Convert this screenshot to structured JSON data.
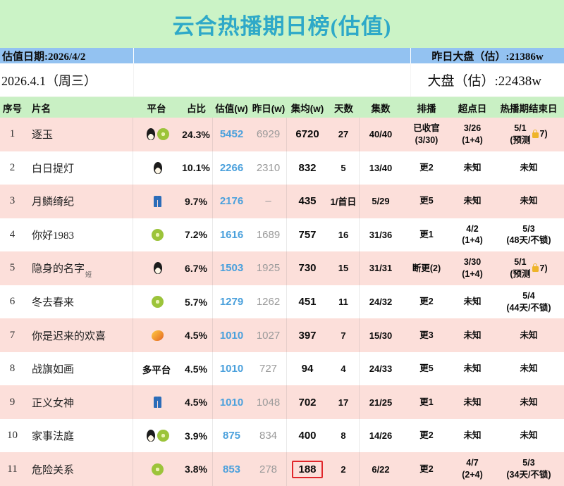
{
  "colors": {
    "band_green": "#cbf3c6",
    "title_teal": "#2ea9c8",
    "info_blue": "#93c2f1",
    "header_green": "#c9f0c4",
    "row_pink": "#fcdfda",
    "estimate_blue": "#4aa0dc",
    "yesterday_gray": "#9a9a9a",
    "highlight_red": "#e0262b",
    "lock_gold": "#eeb42a"
  },
  "title": "云合热播期日榜(估值)",
  "info_bar": {
    "left": "估值日期:2026/4/2",
    "right": "昨日大盘（估）:21386w"
  },
  "date_row": {
    "left": "2026.4.1（周三）",
    "right": "大盘（估）:22438w"
  },
  "chart_data": {
    "type": "table",
    "title": "云合热播期日榜(估值)",
    "columns": [
      "序号",
      "片名",
      "平台",
      "占比",
      "估值(w)",
      "昨日(w)",
      "集均(w)",
      "天数",
      "集数",
      "排播",
      "超点日",
      "热播期结束日"
    ],
    "rows": [
      {
        "num": "1",
        "title": "逐玉",
        "title_suffix": "",
        "platforms": [
          "penguin",
          "kiwi"
        ],
        "platform_text": "",
        "share": "24.3%",
        "est": "5452",
        "yest": "6929",
        "avg": "6720",
        "days": "27",
        "eps": "40/40",
        "sched": "已收官\n(3/30)",
        "point": "3/26\n(1+4)",
        "end": "5/1\n(预测🔒7)"
      },
      {
        "num": "2",
        "title": "白日提灯",
        "title_suffix": "",
        "platforms": [
          "penguin"
        ],
        "platform_text": "",
        "share": "10.1%",
        "est": "2266",
        "yest": "2310",
        "avg": "832",
        "days": "5",
        "eps": "13/40",
        "sched": "更2",
        "point": "未知",
        "end": "未知"
      },
      {
        "num": "3",
        "title": "月鳞绮纪",
        "title_suffix": "",
        "platforms": [
          "jeans"
        ],
        "platform_text": "",
        "share": "9.7%",
        "est": "2176",
        "yest": "–",
        "avg": "435",
        "days": "1/首日",
        "eps": "5/29",
        "sched": "更5",
        "point": "未知",
        "end": "未知"
      },
      {
        "num": "4",
        "title": "你好1983",
        "title_suffix": "",
        "platforms": [
          "kiwi"
        ],
        "platform_text": "",
        "share": "7.2%",
        "est": "1616",
        "yest": "1689",
        "avg": "757",
        "days": "16",
        "eps": "31/36",
        "sched": "更1",
        "point": "4/2\n(1+4)",
        "end": "5/3\n(48天/不锁)"
      },
      {
        "num": "5",
        "title": "隐身的名字",
        "title_suffix": "短",
        "platforms": [
          "penguin"
        ],
        "platform_text": "",
        "share": "6.7%",
        "est": "1503",
        "yest": "1925",
        "avg": "730",
        "days": "15",
        "eps": "31/31",
        "sched": "断更(2)",
        "point": "3/30\n(1+4)",
        "end": "5/1\n(预测🔒7)"
      },
      {
        "num": "6",
        "title": "冬去春来",
        "title_suffix": "",
        "platforms": [
          "kiwi"
        ],
        "platform_text": "",
        "share": "5.7%",
        "est": "1279",
        "yest": "1262",
        "avg": "451",
        "days": "11",
        "eps": "24/32",
        "sched": "更2",
        "point": "未知",
        "end": "5/4\n(44天/不锁)"
      },
      {
        "num": "7",
        "title": "你是迟来的欢喜",
        "title_suffix": "",
        "platforms": [
          "mango"
        ],
        "platform_text": "",
        "share": "4.5%",
        "est": "1010",
        "yest": "1027",
        "avg": "397",
        "days": "7",
        "eps": "15/30",
        "sched": "更3",
        "point": "未知",
        "end": "未知"
      },
      {
        "num": "8",
        "title": "战旗如画",
        "title_suffix": "",
        "platforms": [],
        "platform_text": "多平台",
        "share": "4.5%",
        "est": "1010",
        "yest": "727",
        "avg": "94",
        "days": "4",
        "eps": "24/33",
        "sched": "更5",
        "point": "未知",
        "end": "未知"
      },
      {
        "num": "9",
        "title": "正义女神",
        "title_suffix": "",
        "platforms": [
          "jeans"
        ],
        "platform_text": "",
        "share": "4.5%",
        "est": "1010",
        "yest": "1048",
        "avg": "702",
        "days": "17",
        "eps": "21/25",
        "sched": "更1",
        "point": "未知",
        "end": "未知"
      },
      {
        "num": "10",
        "title": "家事法庭",
        "title_suffix": "",
        "platforms": [
          "penguin",
          "kiwi"
        ],
        "platform_text": "",
        "share": "3.9%",
        "est": "875",
        "yest": "834",
        "avg": "400",
        "days": "8",
        "eps": "14/26",
        "sched": "更2",
        "point": "未知",
        "end": "未知"
      },
      {
        "num": "11",
        "title": "危险关系",
        "title_suffix": "",
        "platforms": [
          "kiwi"
        ],
        "platform_text": "",
        "share": "3.8%",
        "est": "853",
        "yest": "278",
        "avg": "188",
        "days": "2",
        "eps": "6/22",
        "sched": "更2",
        "point": "4/7\n(2+4)",
        "end": "5/3\n(34天/不锁)"
      }
    ]
  }
}
